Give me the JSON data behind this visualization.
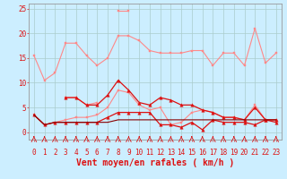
{
  "x": [
    0,
    1,
    2,
    3,
    4,
    5,
    6,
    7,
    8,
    9,
    10,
    11,
    12,
    13,
    14,
    15,
    16,
    17,
    18,
    19,
    20,
    21,
    22,
    23
  ],
  "series": [
    {
      "name": "rafales_light_high",
      "color": "#ff8888",
      "linewidth": 0.8,
      "marker": "s",
      "markersize": 2.0,
      "linestyle": "-",
      "y": [
        15.5,
        10.5,
        12.0,
        18.0,
        18.0,
        15.5,
        13.5,
        15.0,
        19.5,
        19.5,
        18.5,
        16.5,
        16.0,
        16.0,
        16.0,
        16.5,
        16.5,
        13.5,
        16.0,
        16.0,
        13.5,
        21.0,
        14.0,
        16.0
      ]
    },
    {
      "name": "rafales_light_spike",
      "color": "#ff8888",
      "linewidth": 0.8,
      "marker": "s",
      "markersize": 2.0,
      "linestyle": "-",
      "y": [
        null,
        null,
        null,
        null,
        null,
        null,
        null,
        null,
        24.5,
        24.5,
        null,
        null,
        null,
        null,
        null,
        null,
        null,
        null,
        null,
        null,
        null,
        null,
        null,
        null
      ]
    },
    {
      "name": "moyen_light_mid",
      "color": "#ff8888",
      "linewidth": 0.8,
      "marker": "s",
      "markersize": 2.0,
      "linestyle": "-",
      "y": [
        null,
        null,
        null,
        7.0,
        7.0,
        5.5,
        6.0,
        null,
        null,
        null,
        null,
        null,
        null,
        null,
        null,
        null,
        null,
        null,
        null,
        null,
        null,
        null,
        null,
        null
      ]
    },
    {
      "name": "moyen_light_low",
      "color": "#ff8888",
      "linewidth": 0.8,
      "marker": "s",
      "markersize": 2.0,
      "linestyle": "-",
      "y": [
        3.5,
        1.5,
        2.0,
        2.5,
        3.0,
        3.0,
        3.5,
        5.0,
        8.5,
        8.0,
        5.5,
        4.5,
        5.0,
        1.5,
        2.0,
        4.0,
        4.5,
        4.0,
        3.0,
        3.0,
        2.5,
        5.5,
        2.5,
        2.5
      ]
    },
    {
      "name": "rafales_dark",
      "color": "#dd1111",
      "linewidth": 0.9,
      "marker": "^",
      "markersize": 2.5,
      "linestyle": "-",
      "y": [
        null,
        null,
        null,
        7.0,
        7.0,
        5.5,
        5.5,
        7.5,
        10.5,
        8.5,
        6.0,
        5.5,
        7.0,
        6.5,
        5.5,
        5.5,
        4.5,
        4.0,
        3.0,
        3.0,
        2.5,
        5.0,
        2.5,
        2.5
      ]
    },
    {
      "name": "moyen_dark",
      "color": "#dd1111",
      "linewidth": 0.9,
      "marker": "^",
      "markersize": 2.5,
      "linestyle": "-",
      "y": [
        3.5,
        1.5,
        2.0,
        2.0,
        2.0,
        2.0,
        2.0,
        3.0,
        4.0,
        4.0,
        4.0,
        4.0,
        1.5,
        1.5,
        1.0,
        2.0,
        0.5,
        2.5,
        2.0,
        2.0,
        2.0,
        1.5,
        2.5,
        2.0
      ]
    },
    {
      "name": "baseline_dark",
      "color": "#880000",
      "linewidth": 0.8,
      "marker": null,
      "markersize": 0,
      "linestyle": "-",
      "y": [
        3.5,
        1.5,
        2.0,
        2.0,
        2.0,
        2.0,
        2.0,
        2.0,
        2.5,
        2.5,
        2.5,
        2.5,
        2.5,
        2.5,
        2.5,
        2.5,
        2.5,
        2.5,
        2.5,
        2.5,
        2.5,
        2.5,
        2.5,
        2.5
      ]
    }
  ],
  "wind_arrows": [
    0,
    1,
    2,
    3,
    4,
    5,
    6,
    7,
    8,
    9,
    10,
    11,
    12,
    13,
    14,
    15,
    16,
    17,
    18,
    19,
    20,
    21,
    22,
    23
  ],
  "xlabel": "Vent moyen/en rafales ( km/h )",
  "xlim": [
    -0.5,
    23.5
  ],
  "ylim": [
    -1.5,
    26
  ],
  "yticks": [
    0,
    5,
    10,
    15,
    20,
    25
  ],
  "xticks": [
    0,
    1,
    2,
    3,
    4,
    5,
    6,
    7,
    8,
    9,
    10,
    11,
    12,
    13,
    14,
    15,
    16,
    17,
    18,
    19,
    20,
    21,
    22,
    23
  ],
  "bg_color": "#cceeff",
  "grid_color": "#aacccc",
  "arrow_color": "#dd1111",
  "tick_color": "#dd1111",
  "label_color": "#dd1111",
  "tick_fontsize": 5.5,
  "xlabel_fontsize": 7.0
}
